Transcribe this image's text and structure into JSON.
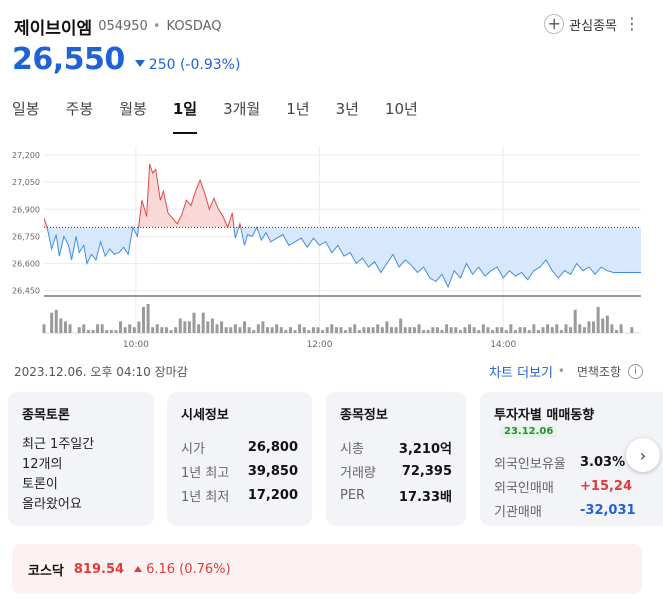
{
  "header": {
    "stock_name": "제이브이엠",
    "stock_code": "054950",
    "market": "KOSDAQ",
    "fav_label": "관심종목"
  },
  "quote": {
    "price": "26,550",
    "change": "250",
    "change_pct": "(-0.93%)"
  },
  "tabs": [
    {
      "label": "일봉"
    },
    {
      "label": "주봉"
    },
    {
      "label": "월봉"
    },
    {
      "label": "1일",
      "active": true
    },
    {
      "label": "3개월"
    },
    {
      "label": "1년"
    },
    {
      "label": "3년"
    },
    {
      "label": "10년"
    }
  ],
  "status": {
    "text": "2023.12.06. 오후 04:10 장마감",
    "chart_more": "차트 더보기",
    "disclaimer": "면책조항"
  },
  "cards": {
    "topic": {
      "title": "종목토론",
      "lines": [
        "최근 1주일간",
        "12개의",
        "토론이",
        "올라왔어요"
      ]
    },
    "market_info": {
      "title": "시세정보",
      "rows": [
        {
          "k": "시가",
          "v": "26,800"
        },
        {
          "k": "1년 최고",
          "v": "39,850"
        },
        {
          "k": "1년 최저",
          "v": "17,200"
        }
      ]
    },
    "stock_info": {
      "title": "종목정보",
      "rows": [
        {
          "k": "시총",
          "v": "3,210억"
        },
        {
          "k": "거래량",
          "v": "72,395"
        },
        {
          "k": "PER",
          "v": "17.33배"
        }
      ]
    },
    "investor": {
      "title": "투자자별 매매동향",
      "date": "23.12.06",
      "rows": [
        {
          "k": "외국인보유율",
          "v": "3.03%"
        },
        {
          "k": "외국인매매",
          "v": "+15,24"
        },
        {
          "k": "기관매매",
          "v": "-32,031"
        }
      ]
    }
  },
  "index": {
    "name": "코스닥",
    "value": "819.54",
    "change": "6.16 (0.76%)"
  },
  "chart_data": {
    "type": "line",
    "title": "",
    "baseline": 26800,
    "ylim": [
      26420,
      27250
    ],
    "y_ticks": [
      27200,
      27050,
      26900,
      26750,
      26600,
      26450
    ],
    "y_tick_labels": [
      "27,200",
      "27,050",
      "26,900",
      "26,750",
      "26,600",
      "26,450"
    ],
    "x_range_minutes": [
      540,
      930
    ],
    "x_ticks": [
      {
        "minute": 600,
        "label": "10:00"
      },
      {
        "minute": 720,
        "label": "12:00"
      },
      {
        "minute": 840,
        "label": "14:00"
      }
    ],
    "grid": true,
    "colors": {
      "up": "#e34848",
      "down": "#3f8ee6",
      "up_fill": "#fbd8d8",
      "down_fill": "#d7e8fc",
      "volume": "#9a9a9a"
    },
    "price_series": [
      [
        540,
        26850
      ],
      [
        542,
        26800
      ],
      [
        545,
        26680
      ],
      [
        548,
        26760
      ],
      [
        550,
        26640
      ],
      [
        553,
        26750
      ],
      [
        556,
        26700
      ],
      [
        558,
        26620
      ],
      [
        561,
        26750
      ],
      [
        563,
        26660
      ],
      [
        566,
        26700
      ],
      [
        568,
        26600
      ],
      [
        571,
        26650
      ],
      [
        574,
        26620
      ],
      [
        577,
        26720
      ],
      [
        580,
        26640
      ],
      [
        583,
        26680
      ],
      [
        586,
        26650
      ],
      [
        589,
        26660
      ],
      [
        592,
        26690
      ],
      [
        595,
        26650
      ],
      [
        598,
        26800
      ],
      [
        601,
        26750
      ],
      [
        604,
        26950
      ],
      [
        607,
        26860
      ],
      [
        609,
        27150
      ],
      [
        611,
        27100
      ],
      [
        613,
        27120
      ],
      [
        616,
        26950
      ],
      [
        618,
        27000
      ],
      [
        621,
        26880
      ],
      [
        624,
        26850
      ],
      [
        627,
        26820
      ],
      [
        630,
        26870
      ],
      [
        633,
        26950
      ],
      [
        636,
        26920
      ],
      [
        639,
        27000
      ],
      [
        642,
        27060
      ],
      [
        645,
        26990
      ],
      [
        648,
        26900
      ],
      [
        651,
        26960
      ],
      [
        654,
        26900
      ],
      [
        657,
        26860
      ],
      [
        660,
        26800
      ],
      [
        663,
        26880
      ],
      [
        665,
        26740
      ],
      [
        668,
        26820
      ],
      [
        671,
        26700
      ],
      [
        673,
        26760
      ],
      [
        676,
        26750
      ],
      [
        679,
        26800
      ],
      [
        682,
        26730
      ],
      [
        685,
        26770
      ],
      [
        688,
        26720
      ],
      [
        692,
        26740
      ],
      [
        696,
        26760
      ],
      [
        700,
        26700
      ],
      [
        704,
        26720
      ],
      [
        708,
        26740
      ],
      [
        712,
        26690
      ],
      [
        716,
        26740
      ],
      [
        720,
        26700
      ],
      [
        724,
        26720
      ],
      [
        728,
        26660
      ],
      [
        732,
        26700
      ],
      [
        736,
        26640
      ],
      [
        740,
        26660
      ],
      [
        744,
        26600
      ],
      [
        748,
        26630
      ],
      [
        752,
        26580
      ],
      [
        756,
        26610
      ],
      [
        760,
        26550
      ],
      [
        764,
        26600
      ],
      [
        768,
        26650
      ],
      [
        772,
        26580
      ],
      [
        776,
        26620
      ],
      [
        780,
        26590
      ],
      [
        784,
        26550
      ],
      [
        788,
        26580
      ],
      [
        792,
        26520
      ],
      [
        796,
        26500
      ],
      [
        800,
        26540
      ],
      [
        804,
        26470
      ],
      [
        808,
        26560
      ],
      [
        812,
        26520
      ],
      [
        816,
        26600
      ],
      [
        820,
        26540
      ],
      [
        824,
        26580
      ],
      [
        828,
        26530
      ],
      [
        832,
        26560
      ],
      [
        836,
        26580
      ],
      [
        840,
        26520
      ],
      [
        844,
        26560
      ],
      [
        848,
        26530
      ],
      [
        852,
        26550
      ],
      [
        856,
        26510
      ],
      [
        860,
        26560
      ],
      [
        864,
        26580
      ],
      [
        868,
        26620
      ],
      [
        872,
        26560
      ],
      [
        876,
        26520
      ],
      [
        880,
        26560
      ],
      [
        884,
        26540
      ],
      [
        888,
        26600
      ],
      [
        892,
        26560
      ],
      [
        896,
        26580
      ],
      [
        900,
        26540
      ],
      [
        904,
        26580
      ],
      [
        908,
        26560
      ],
      [
        912,
        26550
      ],
      [
        916,
        26550
      ],
      [
        930,
        26550
      ]
    ],
    "volume_series": [
      [
        540,
        3
      ],
      [
        545,
        7
      ],
      [
        548,
        8
      ],
      [
        551,
        5
      ],
      [
        554,
        4
      ],
      [
        557,
        3
      ],
      [
        563,
        2
      ],
      [
        566,
        3
      ],
      [
        569,
        1
      ],
      [
        572,
        1
      ],
      [
        575,
        3
      ],
      [
        578,
        3
      ],
      [
        581,
        1
      ],
      [
        584,
        1
      ],
      [
        587,
        1
      ],
      [
        590,
        4
      ],
      [
        593,
        2
      ],
      [
        596,
        3
      ],
      [
        599,
        2
      ],
      [
        602,
        4
      ],
      [
        605,
        9
      ],
      [
        608,
        10
      ],
      [
        611,
        2
      ],
      [
        614,
        3
      ],
      [
        617,
        2
      ],
      [
        620,
        2
      ],
      [
        623,
        1
      ],
      [
        626,
        2
      ],
      [
        629,
        5
      ],
      [
        632,
        4
      ],
      [
        635,
        4
      ],
      [
        638,
        7
      ],
      [
        641,
        3
      ],
      [
        644,
        7
      ],
      [
        647,
        4
      ],
      [
        650,
        5
      ],
      [
        653,
        3
      ],
      [
        656,
        4
      ],
      [
        659,
        2
      ],
      [
        662,
        2
      ],
      [
        665,
        3
      ],
      [
        668,
        2
      ],
      [
        671,
        4
      ],
      [
        674,
        2
      ],
      [
        677,
        1
      ],
      [
        680,
        3
      ],
      [
        683,
        4
      ],
      [
        686,
        2
      ],
      [
        689,
        2
      ],
      [
        692,
        3
      ],
      [
        695,
        2
      ],
      [
        698,
        1
      ],
      [
        701,
        2
      ],
      [
        704,
        1
      ],
      [
        707,
        3
      ],
      [
        710,
        2
      ],
      [
        713,
        1
      ],
      [
        716,
        2
      ],
      [
        719,
        2
      ],
      [
        722,
        1
      ],
      [
        725,
        2
      ],
      [
        728,
        3
      ],
      [
        731,
        2
      ],
      [
        734,
        2
      ],
      [
        737,
        1
      ],
      [
        740,
        2
      ],
      [
        743,
        3
      ],
      [
        746,
        1
      ],
      [
        749,
        2
      ],
      [
        752,
        2
      ],
      [
        755,
        2
      ],
      [
        758,
        3
      ],
      [
        761,
        2
      ],
      [
        764,
        4
      ],
      [
        767,
        2
      ],
      [
        770,
        2
      ],
      [
        773,
        5
      ],
      [
        776,
        2
      ],
      [
        779,
        2
      ],
      [
        782,
        2
      ],
      [
        785,
        3
      ],
      [
        788,
        1
      ],
      [
        791,
        1
      ],
      [
        794,
        2
      ],
      [
        797,
        2
      ],
      [
        800,
        1
      ],
      [
        803,
        3
      ],
      [
        806,
        2
      ],
      [
        809,
        2
      ],
      [
        812,
        1
      ],
      [
        815,
        2
      ],
      [
        818,
        3
      ],
      [
        821,
        2
      ],
      [
        824,
        1
      ],
      [
        827,
        3
      ],
      [
        830,
        2
      ],
      [
        833,
        1
      ],
      [
        836,
        2
      ],
      [
        839,
        2
      ],
      [
        842,
        1
      ],
      [
        845,
        3
      ],
      [
        848,
        1
      ],
      [
        851,
        2
      ],
      [
        854,
        2
      ],
      [
        857,
        1
      ],
      [
        860,
        3
      ],
      [
        863,
        1
      ],
      [
        866,
        2
      ],
      [
        869,
        3
      ],
      [
        872,
        2
      ],
      [
        875,
        3
      ],
      [
        878,
        1
      ],
      [
        881,
        3
      ],
      [
        884,
        2
      ],
      [
        887,
        8
      ],
      [
        890,
        3
      ],
      [
        893,
        2
      ],
      [
        896,
        4
      ],
      [
        899,
        4
      ],
      [
        902,
        9
      ],
      [
        905,
        5
      ],
      [
        908,
        6
      ],
      [
        911,
        3
      ],
      [
        914,
        1
      ],
      [
        917,
        3
      ],
      [
        924,
        2
      ]
    ]
  }
}
